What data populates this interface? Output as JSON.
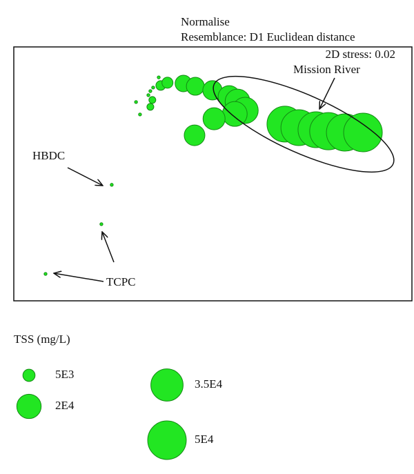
{
  "chart_data": {
    "type": "bubble",
    "title": "Normalise",
    "subtitle": "Resemblance: D1 Euclidean distance",
    "stress": "2D stress: 0.02",
    "annotations": [
      "Mission River",
      "HBDC",
      "TCPC"
    ],
    "xlim": [
      0,
      100
    ],
    "ylim": [
      0,
      100
    ],
    "color": "#22e622",
    "edge_color": "#138a13",
    "x": [
      7.97,
      22.0,
      24.6,
      30.7,
      31.7,
      33.8,
      34.5,
      35.0,
      34.3,
      36.4,
      36.7,
      34.3,
      34.8,
      36.9,
      38.6,
      42.6,
      45.6,
      49.9,
      54.1,
      56.2,
      58.1,
      55.5,
      50.3,
      45.4,
      68.1,
      71.6,
      75.9,
      79.0,
      83.2,
      87.7
    ],
    "y": [
      10.6,
      30.2,
      45.7,
      78.3,
      73.4,
      81.0,
      78.8,
      84.0,
      82.6,
      88.0,
      85.9,
      76.4,
      79.1,
      84.8,
      85.9,
      85.6,
      84.5,
      82.9,
      80.4,
      78.5,
      75.0,
      73.6,
      71.7,
      65.2,
      69.6,
      68.2,
      67.4,
      66.8,
      66.3,
      66.3
    ],
    "size": [
      300,
      300,
      300,
      300,
      300,
      300,
      300,
      300,
      300,
      300,
      300,
      1600,
      1600,
      3136,
      4096,
      9216,
      10816,
      12544,
      16384,
      20736,
      23104,
      20736,
      16384,
      14400,
      43264,
      43264,
      43264,
      46656,
      46656,
      50176
    ],
    "size_legend": {
      "title": "TSS (mg/L)",
      "items": [
        {
          "value": 5000,
          "label": "5E3"
        },
        {
          "value": 20000,
          "label": "2E4"
        },
        {
          "value": 35000,
          "label": "3.5E4"
        },
        {
          "value": 50000,
          "label": "5E4"
        }
      ]
    }
  }
}
